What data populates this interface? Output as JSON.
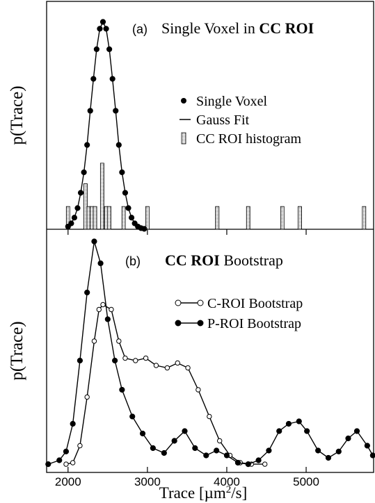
{
  "chart_data": [
    {
      "type": "line",
      "panel_label": "(a)",
      "title": [
        {
          "text": "Single Voxel in ",
          "bold": false
        },
        {
          "text": "CC ROI",
          "bold": true
        }
      ],
      "ylabel": "p(Trace)",
      "xlim": [
        1730,
        5850
      ],
      "ylim": [
        0,
        1
      ],
      "series": [
        {
          "name": "Single Voxel",
          "style": "dots",
          "color": "#000000",
          "x": [
            2000,
            2040,
            2080,
            2120,
            2160,
            2200,
            2240,
            2280,
            2320,
            2360,
            2400,
            2440,
            2480,
            2520,
            2560,
            2600,
            2640,
            2680,
            2720,
            2760,
            2800,
            2840,
            2880,
            2920,
            2960
          ],
          "values": [
            0.012,
            0.026,
            0.051,
            0.093,
            0.16,
            0.25,
            0.37,
            0.52,
            0.66,
            0.79,
            0.88,
            0.91,
            0.88,
            0.79,
            0.66,
            0.52,
            0.37,
            0.25,
            0.16,
            0.093,
            0.051,
            0.026,
            0.012,
            0.005,
            0.002
          ]
        },
        {
          "name": "Gauss Fit",
          "style": "line",
          "color": "#000000",
          "x": [
            2000,
            2040,
            2080,
            2120,
            2160,
            2200,
            2240,
            2280,
            2320,
            2360,
            2400,
            2440,
            2480,
            2520,
            2560,
            2600,
            2640,
            2680,
            2720,
            2760,
            2800,
            2840,
            2880,
            2920,
            2960
          ],
          "values": [
            0.012,
            0.026,
            0.051,
            0.093,
            0.16,
            0.25,
            0.37,
            0.52,
            0.66,
            0.79,
            0.88,
            0.91,
            0.88,
            0.79,
            0.66,
            0.52,
            0.37,
            0.25,
            0.16,
            0.093,
            0.051,
            0.026,
            0.012,
            0.005,
            0.002
          ]
        },
        {
          "name": "CC ROI histogram",
          "style": "bars",
          "color": "#000000",
          "x": [
            2000,
            2220,
            2260,
            2300,
            2340,
            2430,
            2480,
            2520,
            2700,
            3000,
            3880,
            4270,
            4700,
            4920,
            5730
          ],
          "values": [
            0.1,
            0.2,
            0.1,
            0.1,
            0.1,
            0.29,
            0.1,
            0.1,
            0.1,
            0.1,
            0.1,
            0.1,
            0.1,
            0.1,
            0.1
          ]
        }
      ]
    },
    {
      "type": "line",
      "panel_label": "(b)",
      "title": [
        {
          "text": "CC ROI",
          "bold": true
        },
        {
          "text": " Bootstrap",
          "bold": false
        }
      ],
      "ylabel": "p(Trace)",
      "xlim": [
        1730,
        5850
      ],
      "ylim": [
        0,
        1
      ],
      "xticks": [
        2000,
        3000,
        4000,
        5000
      ],
      "xlabel": [
        {
          "text": "Trace  [µm",
          "sup": false
        },
        {
          "text": "2",
          "sup": true
        },
        {
          "text": "/s]",
          "sup": false
        }
      ],
      "series": [
        {
          "name": "C-ROI Bootstrap",
          "style": "open-dots-line",
          "color": "#000000",
          "x": [
            1975,
            2060,
            2150,
            2240,
            2330,
            2390,
            2440,
            2545,
            2640,
            2720,
            2850,
            2980,
            3110,
            3250,
            3380,
            3510,
            3640,
            3780,
            3910,
            4040,
            4170,
            4310,
            4480
          ],
          "values": [
            0.034,
            0.04,
            0.11,
            0.31,
            0.54,
            0.67,
            0.69,
            0.67,
            0.54,
            0.47,
            0.46,
            0.47,
            0.44,
            0.43,
            0.45,
            0.43,
            0.34,
            0.23,
            0.13,
            0.07,
            0.04,
            0.034,
            0.034
          ]
        },
        {
          "name": "P-ROI Bootstrap",
          "style": "dots-line",
          "color": "#000000",
          "x": [
            1750,
            1890,
            1975,
            2060,
            2150,
            2240,
            2330,
            2410,
            2500,
            2590,
            2680,
            2810,
            2940,
            3070,
            3210,
            3340,
            3470,
            3600,
            3740,
            3870,
            4000,
            4140,
            4270,
            4400,
            4530,
            4660,
            4780,
            4910,
            5010,
            5150,
            5280,
            5410,
            5530,
            5640,
            5770,
            5840
          ],
          "values": [
            0.034,
            0.05,
            0.086,
            0.2,
            0.46,
            0.74,
            0.95,
            0.86,
            0.63,
            0.46,
            0.34,
            0.23,
            0.16,
            0.1,
            0.08,
            0.13,
            0.17,
            0.1,
            0.07,
            0.09,
            0.07,
            0.04,
            0.034,
            0.05,
            0.09,
            0.17,
            0.2,
            0.21,
            0.17,
            0.09,
            0.06,
            0.086,
            0.14,
            0.17,
            0.11,
            0.07
          ]
        }
      ]
    }
  ]
}
